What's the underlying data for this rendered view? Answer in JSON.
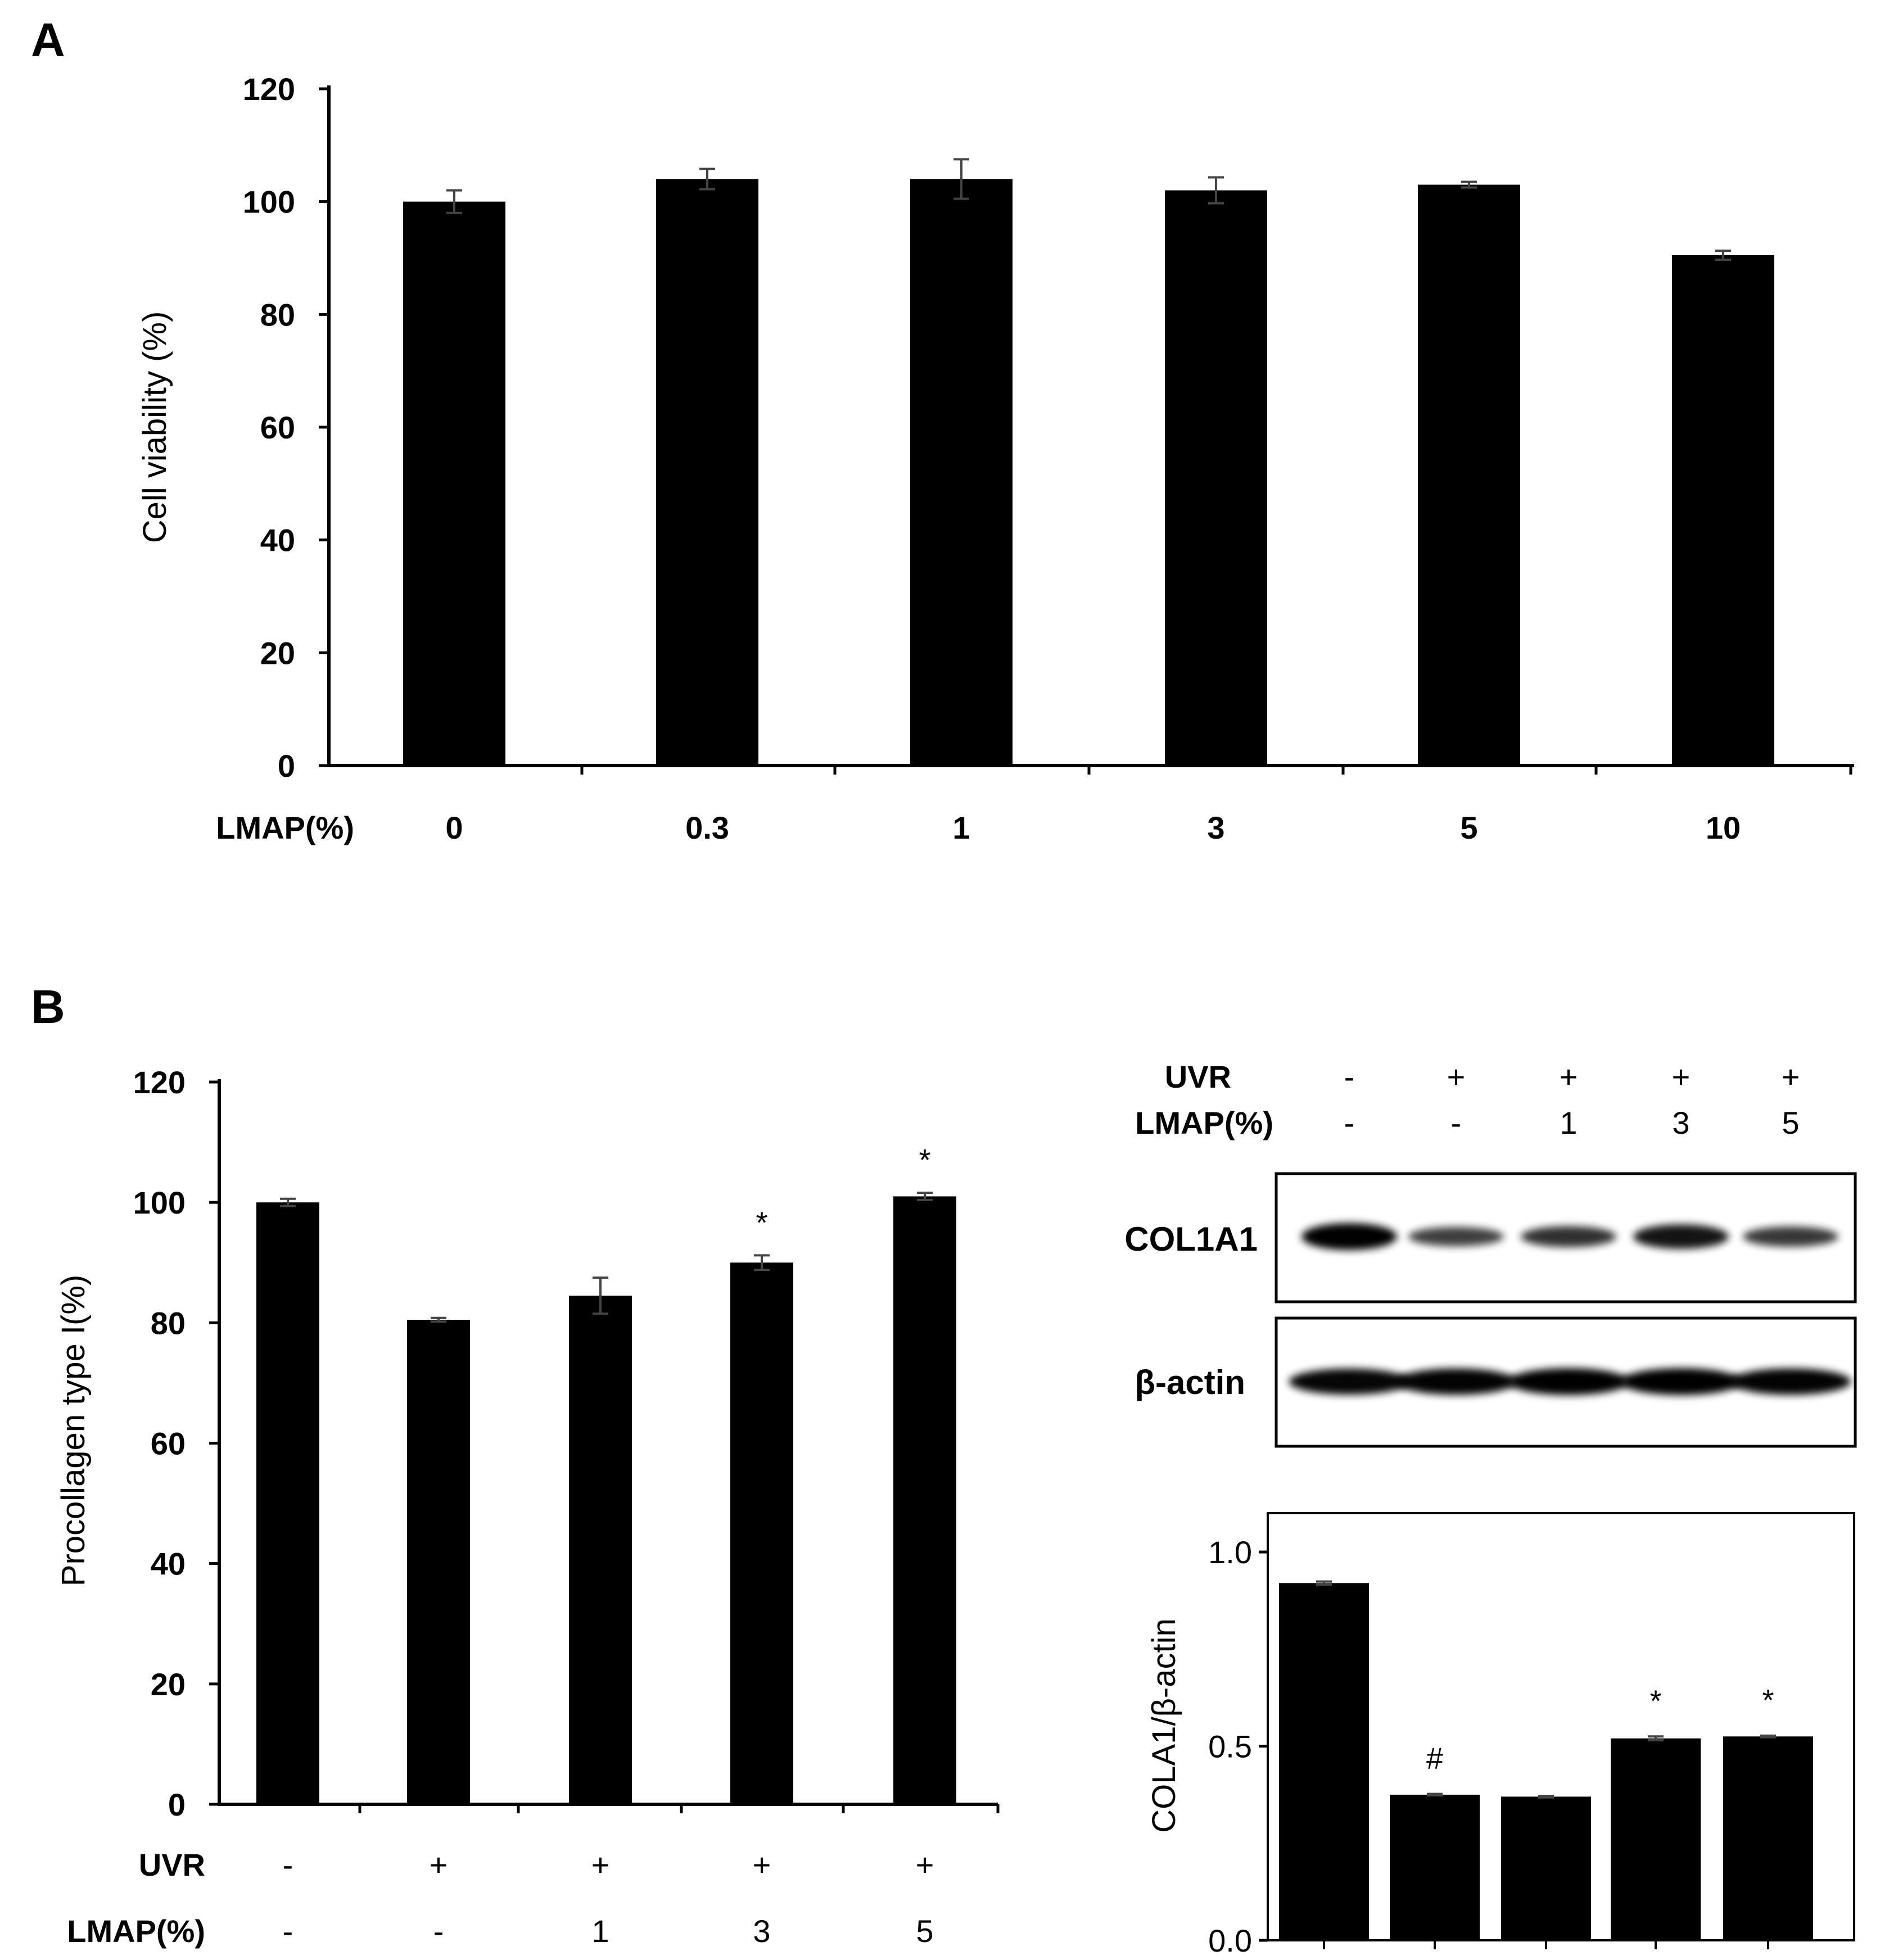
{
  "panels": {
    "a": {
      "letter": "A"
    },
    "b": {
      "letter": "B"
    }
  },
  "colors": {
    "bar": "#000000",
    "error_bar": "#444444",
    "background": "#ffffff"
  },
  "chart_data": [
    {
      "id": "A",
      "type": "bar",
      "title": "",
      "ylabel": "Cell viability (%)",
      "ylim": [
        0,
        120
      ],
      "yticks": [
        "0",
        "20",
        "40",
        "60",
        "80",
        "100",
        "120"
      ],
      "row_labels": [
        "LMAP(%)"
      ],
      "categories": [
        "0",
        "0.3",
        "1",
        "3",
        "5",
        "10"
      ],
      "values": [
        100,
        104,
        104,
        102,
        103,
        90.5
      ],
      "errors": [
        2,
        1.8,
        3.5,
        2.3,
        0.5,
        0.8
      ],
      "annotations": [
        "",
        "",
        "",
        "",
        "",
        ""
      ]
    },
    {
      "id": "B-left",
      "type": "bar",
      "title": "",
      "ylabel": "Procollagen type I(%)",
      "ylim": [
        0,
        120
      ],
      "yticks": [
        "0",
        "20",
        "40",
        "60",
        "80",
        "100",
        "120"
      ],
      "row_labels": [
        "UVR",
        "LMAP(%)"
      ],
      "uvr": [
        "-",
        "+",
        "+",
        "+",
        "+"
      ],
      "lmap": [
        "-",
        "-",
        "1",
        "3",
        "5"
      ],
      "values": [
        100,
        80.5,
        84.5,
        90,
        101
      ],
      "errors": [
        0.6,
        0.3,
        3,
        1.2,
        0.6
      ],
      "annotations": [
        "",
        "",
        "",
        "*",
        "*"
      ]
    },
    {
      "id": "B-right",
      "type": "bar",
      "title": "",
      "ylabel": "COLA1/β-actin",
      "ylim": [
        0,
        1.1
      ],
      "yticks": [
        "0.0",
        "0.5",
        "1.0"
      ],
      "values": [
        0.92,
        0.375,
        0.37,
        0.52,
        0.525
      ],
      "errors": [
        0.004,
        0.002,
        0.002,
        0.005,
        0.002
      ],
      "annotations": [
        "",
        "#",
        "",
        "*",
        "*"
      ]
    }
  ],
  "western_blot": {
    "row_labels": [
      "UVR",
      "LMAP(%)"
    ],
    "uvr": [
      "-",
      "+",
      "+",
      "+",
      "+"
    ],
    "lmap": [
      "-",
      "-",
      "1",
      "3",
      "5"
    ],
    "bands": [
      {
        "label": "COL1A1",
        "intensity": [
          1.0,
          0.55,
          0.65,
          0.85,
          0.6
        ]
      },
      {
        "label": "β-actin",
        "intensity": [
          0.95,
          0.97,
          1.0,
          1.0,
          0.97
        ]
      }
    ]
  }
}
